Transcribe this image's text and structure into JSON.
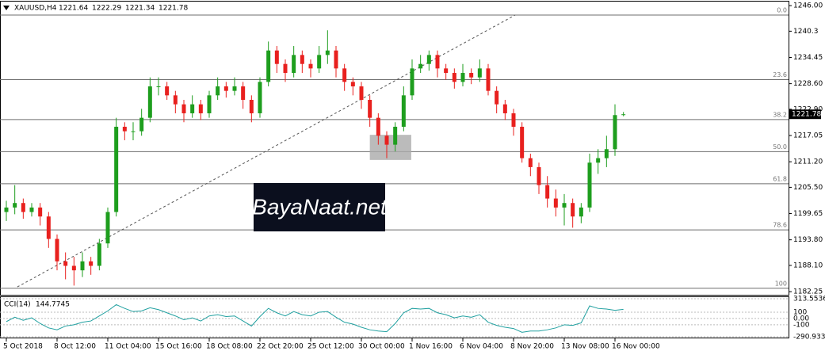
{
  "chart_data": {
    "type": "candlestick",
    "title": "XAUUSD,H4",
    "categories": [
      "5 Oct 2018",
      null,
      null,
      null,
      null,
      null,
      "8 Oct 12:00",
      null,
      null,
      null,
      null,
      null,
      "11 Oct 04:00",
      null,
      null,
      null,
      null,
      null,
      "15 Oct 16:00",
      null,
      null,
      null,
      null,
      null,
      "18 Oct 08:00",
      null,
      null,
      null,
      null,
      null,
      "22 Oct 20:00",
      null,
      null,
      null,
      null,
      null,
      "25 Oct 12:00",
      null,
      null,
      null,
      null,
      null,
      "30 Oct 00:00",
      null,
      null,
      null,
      null,
      null,
      "1 Nov 16:00",
      null,
      null,
      null,
      null,
      null,
      "6 Nov 04:00",
      null,
      null,
      null,
      null,
      null,
      "8 Nov 20:00",
      null,
      null,
      null,
      null,
      null,
      "13 Nov 08:00",
      null,
      null,
      null,
      null,
      null,
      "16 Nov 00:00",
      null
    ],
    "series": {
      "up_color": "#1e9e1e",
      "down_color": "#e8201e",
      "open": [
        1200,
        1201,
        1202,
        1200,
        1201,
        1199,
        1194,
        1189,
        1188,
        1187,
        1189,
        1188,
        1193,
        1200,
        1219,
        1218,
        1218,
        1221,
        1228,
        1228,
        1226,
        1224,
        1222,
        1224,
        1222,
        1226,
        1228,
        1227,
        1228,
        1225,
        1222,
        1229,
        1236,
        1233,
        1231,
        1235,
        1233,
        1232,
        1235,
        1236,
        1232,
        1229,
        1228,
        1225,
        1221,
        1217,
        1215,
        1219,
        1226,
        1232,
        1233,
        1235,
        1232,
        1231,
        1229,
        1231,
        1230,
        1232,
        1227,
        1224,
        1222,
        1219,
        1212,
        1210,
        1206,
        1203,
        1201,
        1202,
        1199,
        1201,
        1211,
        1212,
        1214,
        1221.64
      ],
      "high": [
        1202.5,
        1206,
        1203,
        1202,
        1202,
        1200,
        1195,
        1191,
        1190,
        1191,
        1190,
        1194,
        1201,
        1221,
        1220,
        1220,
        1223,
        1230,
        1230,
        1229,
        1227,
        1225,
        1226,
        1225,
        1227,
        1230,
        1229,
        1230,
        1229,
        1226,
        1230,
        1238,
        1237,
        1234,
        1237,
        1236,
        1234,
        1237,
        1240.5,
        1237,
        1233,
        1230,
        1229,
        1226,
        1222,
        1218,
        1220,
        1228,
        1234,
        1235,
        1236,
        1236,
        1233,
        1232,
        1233,
        1232,
        1234,
        1233,
        1228,
        1225,
        1223,
        1220,
        1213,
        1211,
        1208,
        1205,
        1204,
        1203,
        1202,
        1213,
        1214,
        1217,
        1224,
        1222.29
      ],
      "low": [
        1198,
        1199.5,
        1198.5,
        1199,
        1197,
        1192,
        1187,
        1185,
        1183.6,
        1185.5,
        1186,
        1187,
        1192,
        1199,
        1216,
        1216,
        1217,
        1220,
        1226,
        1225,
        1222,
        1220,
        1221,
        1220.5,
        1221,
        1225,
        1225.5,
        1226,
        1223,
        1220,
        1221,
        1228,
        1231,
        1229,
        1230,
        1231,
        1230,
        1231,
        1233,
        1230,
        1227,
        1226,
        1223,
        1219,
        1215,
        1212,
        1213.5,
        1218,
        1225,
        1231,
        1231.5,
        1230,
        1229.5,
        1227.5,
        1228,
        1228.5,
        1229,
        1226,
        1222,
        1220.5,
        1217,
        1211,
        1208,
        1204,
        1201,
        1199,
        1197,
        1196.5,
        1197.5,
        1200,
        1208.5,
        1210,
        1212.5,
        1221.34
      ],
      "close": [
        1201,
        1202,
        1200,
        1201,
        1199,
        1194,
        1189,
        1188,
        1187,
        1189,
        1188,
        1193,
        1200,
        1219,
        1218,
        1218,
        1221,
        1228,
        1228,
        1226,
        1224,
        1222,
        1224,
        1222,
        1226,
        1228,
        1227,
        1228,
        1225,
        1222,
        1229,
        1236,
        1233,
        1231,
        1235,
        1233,
        1232,
        1235,
        1236,
        1232,
        1229,
        1228,
        1225,
        1221,
        1217,
        1215,
        1219,
        1226,
        1232,
        1233,
        1235,
        1232,
        1231,
        1229,
        1231,
        1230,
        1232,
        1227,
        1224,
        1222,
        1219,
        1212,
        1210,
        1206,
        1203,
        1201,
        1202,
        1199,
        1201,
        1211,
        1212,
        1214,
        1221.6,
        1221.78
      ]
    },
    "ylim": [
      1181.55,
      1246.9
    ],
    "yticks": [
      {
        "value": 1246,
        "label": "1246.00"
      },
      1240.3,
      1234.45,
      {
        "value": 1228.6,
        "label": "1228.60"
      },
      {
        "value": 1222.9,
        "label": "1222.90"
      },
      1217.05,
      {
        "value": 1211.2,
        "label": "1211.20"
      },
      {
        "value": 1205.5,
        "label": "1205.50"
      },
      1199.65,
      {
        "value": 1193.8,
        "label": "1193.80"
      },
      {
        "value": 1188.1,
        "label": "1188.10"
      },
      1182.25
    ],
    "fibonacci": [
      {
        "label": "0.0",
        "price": 1243.9
      },
      {
        "label": "23.6",
        "price": 1229.5
      },
      {
        "label": "38.2",
        "price": 1220.6
      },
      {
        "label": "50.0",
        "price": 1213.45
      },
      {
        "label": "61.8",
        "price": 1206.3
      },
      {
        "label": "78.6",
        "price": 1196.0
      },
      {
        "label": "100",
        "price": 1183.0
      }
    ],
    "trendline": [
      [
        1.3,
        1183.3
      ],
      [
        60.2,
        1243.9
      ]
    ],
    "zone": {
      "from": 43,
      "to": 47.9,
      "top": 1217.2,
      "bottom": 1211.6
    },
    "watermark": "BayaNaat.net",
    "indicator": {
      "name": "CCI(14)",
      "color": "#20a0a0",
      "values": [
        -50,
        20,
        -30,
        10,
        -80,
        -150,
        -180,
        -120,
        -100,
        -60,
        -40,
        40,
        120,
        220,
        160,
        110,
        120,
        170,
        140,
        90,
        40,
        -20,
        10,
        -40,
        40,
        60,
        30,
        40,
        -40,
        -120,
        30,
        160,
        90,
        40,
        110,
        60,
        40,
        100,
        110,
        20,
        -60,
        -90,
        -140,
        -180,
        -200,
        -210,
        -80,
        90,
        160,
        150,
        160,
        90,
        60,
        10,
        40,
        20,
        60,
        -60,
        -110,
        -140,
        -160,
        -220,
        -200,
        -200,
        -180,
        -150,
        -100,
        -110,
        -70,
        200,
        160,
        150,
        130,
        144.7745
      ],
      "ylim": [
        -290.933,
        313.5536
      ],
      "yticks": [
        313.5536,
        100,
        {
          "value": 0,
          "label": "0.00"
        },
        -100,
        -290.933
      ]
    }
  }
}
